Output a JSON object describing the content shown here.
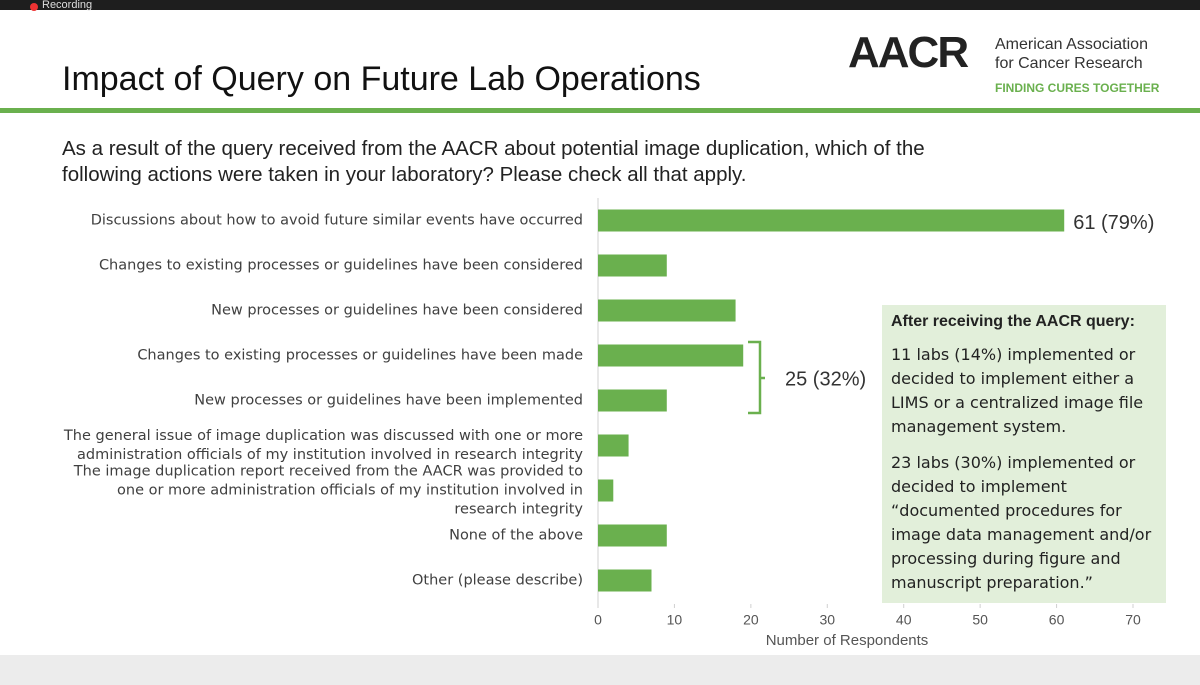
{
  "recording": "Recording",
  "header": {
    "title": "Impact of Query on Future Lab Operations",
    "logo": "AACR",
    "org_lines": [
      "American Association",
      "for Cancer Research"
    ],
    "tagline": "FINDING CURES TOGETHER"
  },
  "question": [
    "As a result of the query received from the AACR about potential image duplication, which of the",
    "following actions were taken in your laboratory?  Please check all that apply."
  ],
  "chart_data": {
    "type": "bar",
    "orientation": "horizontal",
    "categories": [
      "Discussions about how to avoid future similar events have occurred",
      "Changes to existing processes or guidelines have been considered",
      "New processes or guidelines have been considered",
      "Changes to existing processes or guidelines have been made",
      "New processes or guidelines have been implemented",
      "The general issue of image duplication was discussed with one or more administration officials of my institution involved in research integrity",
      "The image duplication report received from the AACR was provided to one or more administration officials of my institution involved in research integrity",
      "None of the above",
      "Other (please describe)"
    ],
    "values": [
      61,
      9,
      18,
      19,
      9,
      4,
      2,
      9,
      7
    ],
    "value_labels": [
      "61 (79%)",
      null,
      null,
      null,
      null,
      null,
      null,
      null,
      null
    ],
    "color": "#6ab04e",
    "xlim": [
      0,
      70
    ],
    "xticks": [
      0,
      10,
      20,
      30,
      40,
      50,
      60,
      70
    ],
    "xlabel": "Number of Respondents",
    "annotation": "25 (32%)"
  },
  "callout": {
    "heading": "After receiving the AACR query:",
    "paragraphs": [
      [
        "11 labs (14%) implemented or",
        "decided to implement either a",
        "LIMS or a centralized image file",
        "management system."
      ],
      [
        "23 labs (30%) implemented or",
        "decided to implement",
        "“documented procedures for",
        "image data management and/or",
        "processing during figure and",
        "manuscript preparation.”"
      ]
    ]
  }
}
